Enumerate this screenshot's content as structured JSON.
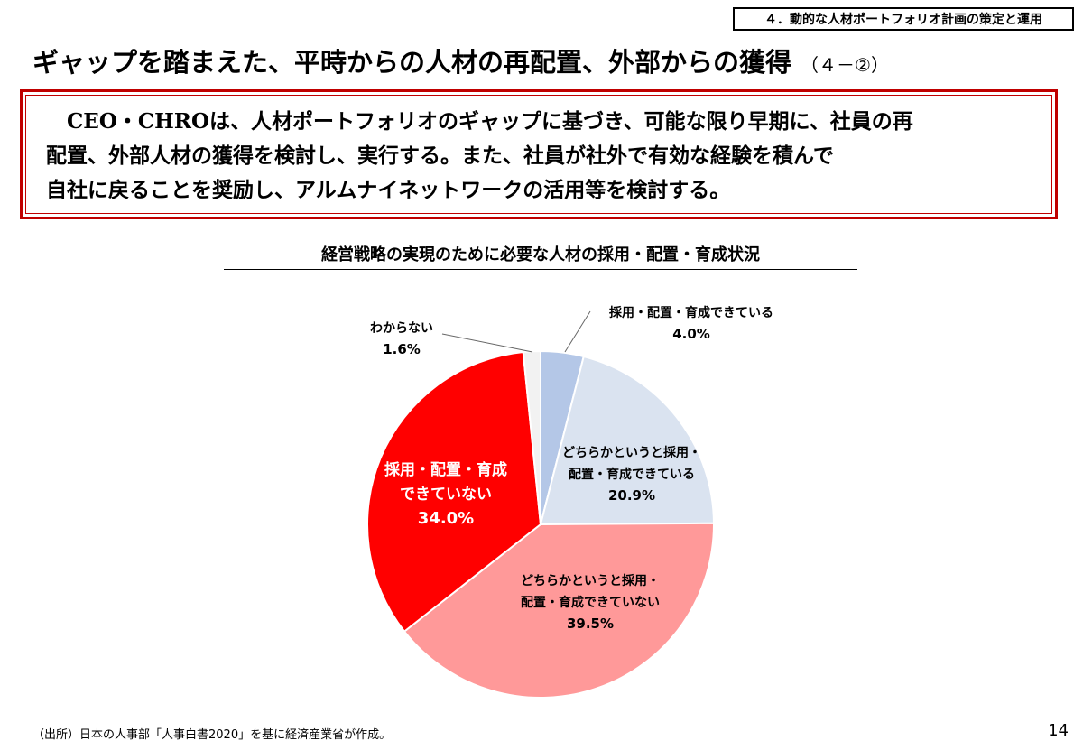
{
  "header": {
    "section_tag": "４．動的な人材ポートフォリオ計画の策定と運用",
    "title": "ギャップを踏まえた、平時からの人材の再配置、外部からの獲得",
    "title_suffix": "（４－②）"
  },
  "summary": {
    "lines": [
      "CEO・CHROは、人材ポートフォリオのギャップに基づき、可能な限り早期に、社員の再",
      "配置、外部人材の獲得を検討し、実行する。また、社員が社外で有効な経験を積んで",
      "自社に戻ることを奨励し、アルムナイネットワークの活用等を検討する。"
    ],
    "border_color": "#c00000"
  },
  "chart_data": {
    "type": "pie",
    "title": "経営戦略の実現のために必要な人材の採用・配置・育成状況",
    "start": "12 o'clock, clockwise",
    "slices": [
      {
        "label_lines": [
          "採用・配置・育成できている"
        ],
        "value": 4.0,
        "value_label": "4.0%",
        "color": "#b4c7e7"
      },
      {
        "label_lines": [
          "どちらかというと採用・",
          "配置・育成できている"
        ],
        "value": 20.9,
        "value_label": "20.9%",
        "color": "#dae3f0"
      },
      {
        "label_lines": [
          "どちらかというと採用・",
          "配置・育成できていない"
        ],
        "value": 39.5,
        "value_label": "39.5%",
        "color": "#ff9999"
      },
      {
        "label_lines": [
          "採用・配置・育成",
          "できていない"
        ],
        "value": 34.0,
        "value_label": "34.0%",
        "color": "#ff0000"
      },
      {
        "label_lines": [
          "わからない"
        ],
        "value": 1.6,
        "value_label": "1.6%",
        "color": "#f2f2f2"
      }
    ]
  },
  "footer": {
    "source": "（出所）日本の人事部「人事白書2020」を基に経済産業省が作成。",
    "page_number": "14"
  }
}
